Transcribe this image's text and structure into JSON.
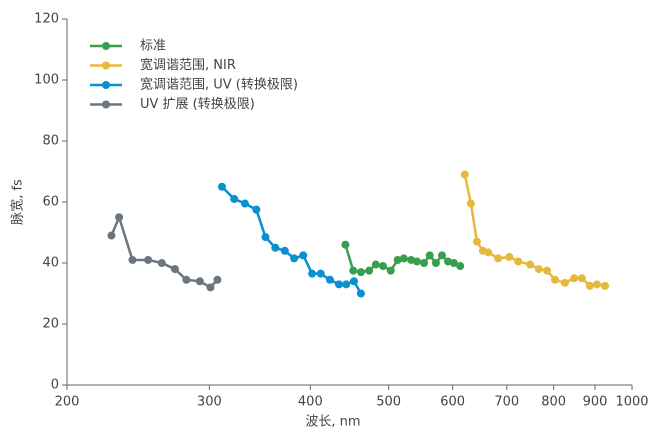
{
  "chart_data": {
    "type": "line",
    "x_label": "波长, nm",
    "y_label": "脉宽, fs",
    "xscale": "log",
    "xlim": [
      200,
      1000
    ],
    "xticks": [
      200,
      300,
      400,
      500,
      600,
      700,
      800,
      900,
      1000
    ],
    "ylim": [
      0,
      120
    ],
    "yticks": [
      0,
      20,
      40,
      60,
      80,
      100,
      120
    ],
    "legend": "upper-left",
    "series": [
      {
        "name": "标准",
        "color": "#3a9e4f",
        "x": [
          442,
          452,
          462,
          473,
          482,
          492,
          503,
          513,
          522,
          533,
          542,
          553,
          562,
          572,
          582,
          592,
          602,
          613
        ],
        "values": [
          46,
          37.5,
          37,
          37.5,
          39.5,
          39,
          37.5,
          41,
          41.5,
          41,
          40.5,
          40,
          42.5,
          40,
          42.5,
          40.5,
          40,
          39
        ]
      },
      {
        "name": "宽调谐范围, NIR",
        "color": "#e6b93a",
        "x": [
          621,
          632,
          643,
          654,
          664,
          683,
          705,
          723,
          748,
          767,
          785,
          803,
          826,
          848,
          867,
          887,
          905,
          926
        ],
        "values": [
          69,
          59.5,
          47,
          44,
          43.5,
          41.5,
          42,
          40.5,
          39.5,
          38,
          37.5,
          34.5,
          33.5,
          35,
          35,
          32.5,
          33,
          32.5
        ]
      },
      {
        "name": "宽调谐范围, UV (转换极限)",
        "color": "#0a8fcf",
        "x": [
          311,
          322,
          332,
          343,
          352,
          362,
          372,
          382,
          392,
          402,
          412,
          423,
          434,
          443,
          453,
          462
        ],
        "values": [
          65,
          61,
          59.5,
          57.5,
          48.5,
          45,
          44,
          41.5,
          42.5,
          36.5,
          36.5,
          34.5,
          33,
          33,
          34,
          30
        ]
      },
      {
        "name": "UV 扩展 (转换极限)",
        "color": "#6b7680",
        "x": [
          227,
          232,
          241,
          252,
          262,
          272,
          281,
          292,
          301,
          307
        ],
        "values": [
          49,
          55,
          41,
          41,
          40,
          38,
          34.5,
          34,
          32,
          34.5
        ]
      }
    ]
  }
}
